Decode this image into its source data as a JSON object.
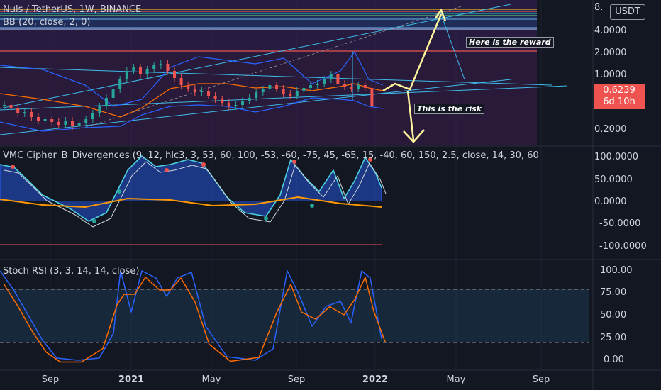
{
  "header": {
    "symbol_title": "Nuls / TetherUS, 1W, BINANCE",
    "bb_label": "BB (20, close, 2, 0)",
    "currency_button": "USDT"
  },
  "price_axis": {
    "ticks": [
      "8.",
      "4.0000",
      "2.0000",
      "1.0000",
      "0.2000"
    ],
    "last_price": "0.6239",
    "countdown": "6d 10h"
  },
  "cipher_panel": {
    "title": "VMC Cipher_B_Divergences (9, 12, hlc3, 3, 53, 60, 100, -53, -60, -75, 45, -65, 15, -40, 60, 150, 2.5, close, 14, 30, 60",
    "ticks": [
      "100.0000",
      "50.0000",
      "0.0000",
      "-50.0000",
      "-100.0000"
    ]
  },
  "stoch_panel": {
    "title": "Stoch RSI (3, 3, 14, 14, close)",
    "ticks": [
      "100.00",
      "75.00",
      "50.00",
      "25.00",
      "0.00"
    ]
  },
  "time_axis": {
    "ticks": [
      {
        "label": "Sep",
        "bold": false
      },
      {
        "label": "2021",
        "bold": true
      },
      {
        "label": "May",
        "bold": false
      },
      {
        "label": "Sep",
        "bold": false
      },
      {
        "label": "2022",
        "bold": true
      },
      {
        "label": "May",
        "bold": false
      },
      {
        "label": "Sep",
        "bold": false
      }
    ]
  },
  "annotations": {
    "reward": "Here is the reward",
    "risk": "This is the risk"
  },
  "colors": {
    "background": "#131722",
    "up_candle": "#26a69a",
    "down_candle": "#ef5350",
    "bb_band": "#2962ff",
    "bb_basis": "#ff6d00",
    "trendline": "#3dbbe8",
    "arrow": "#fff59d",
    "stoch_k": "#2962ff",
    "stoch_d": "#ff6d00"
  }
}
